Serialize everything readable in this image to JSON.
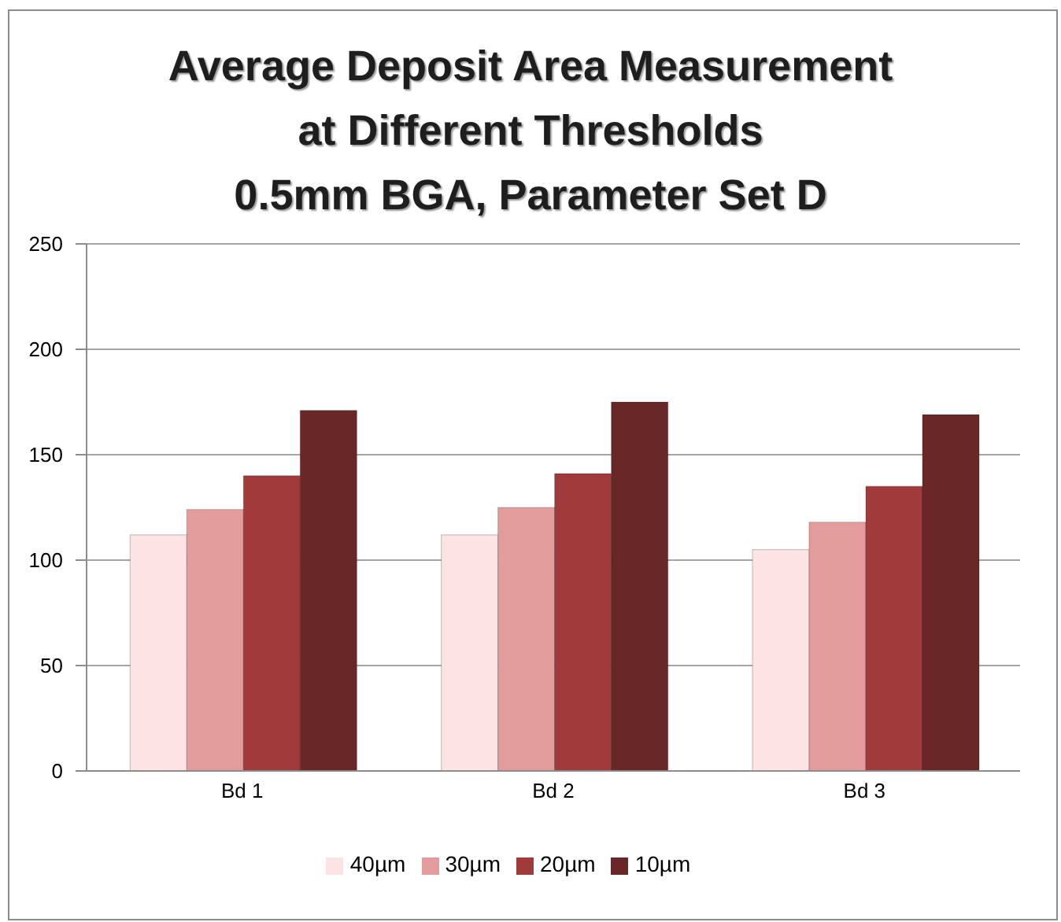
{
  "chart_data": {
    "type": "bar",
    "title": "Average Deposit Area Measurement\nat Different Thresholds\n0.5mm BGA, Parameter Set D",
    "categories": [
      "Bd 1",
      "Bd 2",
      "Bd 3"
    ],
    "series": [
      {
        "name": "40µm",
        "color": "#fce4e4",
        "values": [
          112,
          112,
          105
        ]
      },
      {
        "name": "30µm",
        "color": "#e29c9b",
        "values": [
          124,
          125,
          118
        ]
      },
      {
        "name": "20µm",
        "color": "#a13b3b",
        "values": [
          140,
          141,
          135
        ]
      },
      {
        "name": "10µm",
        "color": "#6a2727",
        "values": [
          171,
          175,
          169
        ]
      }
    ],
    "ylim": [
      0,
      250
    ],
    "yticks": [
      0,
      50,
      100,
      150,
      200,
      250
    ],
    "grid": "y",
    "legend": "bottom"
  }
}
